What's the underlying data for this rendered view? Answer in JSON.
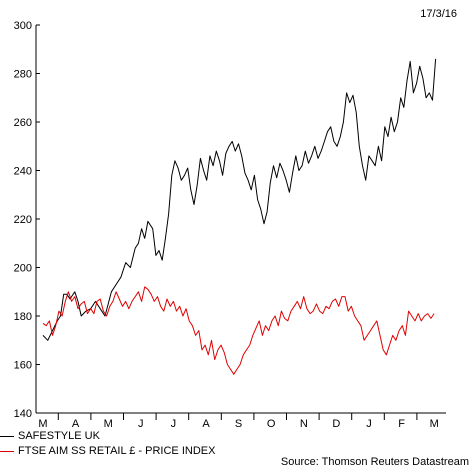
{
  "date_label": "17/3/16",
  "source": "Source: Thomson Reuters Datastream",
  "colors": {
    "safestyle": "#000000",
    "ftse": "#e00000"
  },
  "chart_data": {
    "type": "line",
    "title": "",
    "xlabel": "",
    "ylabel": "",
    "ylim": [
      140,
      300
    ],
    "y_ticks": [
      140,
      160,
      180,
      200,
      220,
      240,
      260,
      280,
      300
    ],
    "x_tick_labels": [
      "M",
      "A",
      "M",
      "J",
      "J",
      "A",
      "S",
      "O",
      "N",
      "D",
      "J",
      "F",
      "M"
    ],
    "x_range": [
      0,
      12.55
    ],
    "grid": false,
    "legend_position": "bottom-left",
    "series": [
      {
        "name": "SAFESTYLE UK",
        "color": "#000000",
        "points": [
          [
            0.0,
            172
          ],
          [
            0.15,
            170
          ],
          [
            0.3,
            174
          ],
          [
            0.45,
            178
          ],
          [
            0.55,
            180
          ],
          [
            0.65,
            189
          ],
          [
            0.75,
            189
          ],
          [
            0.85,
            187
          ],
          [
            1.0,
            190
          ],
          [
            1.1,
            186
          ],
          [
            1.2,
            180
          ],
          [
            1.35,
            182
          ],
          [
            1.5,
            183
          ],
          [
            1.65,
            186
          ],
          [
            1.8,
            183
          ],
          [
            1.95,
            180
          ],
          [
            2.05,
            185
          ],
          [
            2.15,
            190
          ],
          [
            2.3,
            193
          ],
          [
            2.45,
            196
          ],
          [
            2.6,
            202
          ],
          [
            2.75,
            200
          ],
          [
            2.9,
            208
          ],
          [
            3.0,
            210
          ],
          [
            3.1,
            216
          ],
          [
            3.2,
            212
          ],
          [
            3.3,
            219
          ],
          [
            3.4,
            217
          ],
          [
            3.45,
            216
          ],
          [
            3.55,
            205
          ],
          [
            3.65,
            207
          ],
          [
            3.75,
            203
          ],
          [
            3.85,
            212
          ],
          [
            3.95,
            222
          ],
          [
            4.05,
            238
          ],
          [
            4.15,
            244
          ],
          [
            4.25,
            241
          ],
          [
            4.35,
            236
          ],
          [
            4.45,
            238
          ],
          [
            4.55,
            241
          ],
          [
            4.65,
            232
          ],
          [
            4.75,
            226
          ],
          [
            4.85,
            234
          ],
          [
            4.95,
            245
          ],
          [
            5.05,
            240
          ],
          [
            5.15,
            236
          ],
          [
            5.25,
            246
          ],
          [
            5.35,
            242
          ],
          [
            5.45,
            248
          ],
          [
            5.55,
            244
          ],
          [
            5.65,
            238
          ],
          [
            5.75,
            247
          ],
          [
            5.85,
            250
          ],
          [
            5.95,
            252
          ],
          [
            6.05,
            248
          ],
          [
            6.15,
            251
          ],
          [
            6.25,
            246
          ],
          [
            6.35,
            239
          ],
          [
            6.45,
            236
          ],
          [
            6.55,
            232
          ],
          [
            6.65,
            238
          ],
          [
            6.75,
            228
          ],
          [
            6.85,
            224
          ],
          [
            6.95,
            218
          ],
          [
            7.05,
            223
          ],
          [
            7.15,
            235
          ],
          [
            7.25,
            242
          ],
          [
            7.35,
            237
          ],
          [
            7.45,
            243
          ],
          [
            7.55,
            240
          ],
          [
            7.65,
            236
          ],
          [
            7.75,
            231
          ],
          [
            7.85,
            239
          ],
          [
            7.95,
            246
          ],
          [
            8.05,
            240
          ],
          [
            8.15,
            242
          ],
          [
            8.25,
            248
          ],
          [
            8.35,
            243
          ],
          [
            8.45,
            246
          ],
          [
            8.55,
            250
          ],
          [
            8.65,
            245
          ],
          [
            8.75,
            248
          ],
          [
            8.85,
            252
          ],
          [
            8.95,
            256
          ],
          [
            9.05,
            258
          ],
          [
            9.15,
            252
          ],
          [
            9.25,
            250
          ],
          [
            9.35,
            254
          ],
          [
            9.45,
            260
          ],
          [
            9.55,
            272
          ],
          [
            9.65,
            268
          ],
          [
            9.75,
            271
          ],
          [
            9.85,
            264
          ],
          [
            9.95,
            250
          ],
          [
            10.05,
            242
          ],
          [
            10.15,
            236
          ],
          [
            10.25,
            246
          ],
          [
            10.35,
            244
          ],
          [
            10.45,
            242
          ],
          [
            10.55,
            250
          ],
          [
            10.65,
            244
          ],
          [
            10.75,
            258
          ],
          [
            10.85,
            254
          ],
          [
            10.95,
            262
          ],
          [
            11.05,
            256
          ],
          [
            11.15,
            260
          ],
          [
            11.25,
            270
          ],
          [
            11.35,
            266
          ],
          [
            11.45,
            277
          ],
          [
            11.55,
            285
          ],
          [
            11.65,
            272
          ],
          [
            11.75,
            276
          ],
          [
            11.85,
            283
          ],
          [
            11.95,
            278
          ],
          [
            12.05,
            270
          ],
          [
            12.15,
            272
          ],
          [
            12.25,
            269
          ],
          [
            12.35,
            286
          ]
        ]
      },
      {
        "name": "FTSE AIM SS RETAIL £ - PRICE INDEX",
        "color": "#e00000",
        "points": [
          [
            0.0,
            177
          ],
          [
            0.1,
            176
          ],
          [
            0.2,
            178
          ],
          [
            0.3,
            172
          ],
          [
            0.4,
            176
          ],
          [
            0.5,
            182
          ],
          [
            0.6,
            180
          ],
          [
            0.7,
            186
          ],
          [
            0.8,
            190
          ],
          [
            0.9,
            186
          ],
          [
            1.0,
            188
          ],
          [
            1.1,
            183
          ],
          [
            1.2,
            185
          ],
          [
            1.3,
            186
          ],
          [
            1.4,
            181
          ],
          [
            1.5,
            183
          ],
          [
            1.6,
            181
          ],
          [
            1.7,
            186
          ],
          [
            1.8,
            187
          ],
          [
            1.9,
            182
          ],
          [
            2.0,
            180
          ],
          [
            2.1,
            184
          ],
          [
            2.2,
            186
          ],
          [
            2.3,
            190
          ],
          [
            2.4,
            187
          ],
          [
            2.5,
            184
          ],
          [
            2.6,
            186
          ],
          [
            2.7,
            183
          ],
          [
            2.8,
            186
          ],
          [
            2.9,
            188
          ],
          [
            3.0,
            190
          ],
          [
            3.1,
            186
          ],
          [
            3.2,
            192
          ],
          [
            3.3,
            191
          ],
          [
            3.4,
            189
          ],
          [
            3.5,
            186
          ],
          [
            3.6,
            188
          ],
          [
            3.7,
            184
          ],
          [
            3.8,
            182
          ],
          [
            3.9,
            187
          ],
          [
            4.0,
            184
          ],
          [
            4.1,
            186
          ],
          [
            4.2,
            182
          ],
          [
            4.3,
            184
          ],
          [
            4.4,
            180
          ],
          [
            4.5,
            183
          ],
          [
            4.6,
            178
          ],
          [
            4.7,
            176
          ],
          [
            4.8,
            172
          ],
          [
            4.9,
            174
          ],
          [
            5.0,
            166
          ],
          [
            5.1,
            168
          ],
          [
            5.2,
            164
          ],
          [
            5.3,
            170
          ],
          [
            5.4,
            162
          ],
          [
            5.5,
            166
          ],
          [
            5.6,
            168
          ],
          [
            5.7,
            165
          ],
          [
            5.8,
            160
          ],
          [
            5.9,
            158
          ],
          [
            6.0,
            156
          ],
          [
            6.1,
            158
          ],
          [
            6.2,
            160
          ],
          [
            6.3,
            164
          ],
          [
            6.4,
            166
          ],
          [
            6.5,
            168
          ],
          [
            6.6,
            172
          ],
          [
            6.7,
            175
          ],
          [
            6.8,
            178
          ],
          [
            6.9,
            172
          ],
          [
            7.0,
            176
          ],
          [
            7.1,
            174
          ],
          [
            7.2,
            178
          ],
          [
            7.3,
            180
          ],
          [
            7.4,
            176
          ],
          [
            7.5,
            182
          ],
          [
            7.6,
            179
          ],
          [
            7.7,
            178
          ],
          [
            7.8,
            182
          ],
          [
            7.9,
            184
          ],
          [
            8.0,
            186
          ],
          [
            8.1,
            183
          ],
          [
            8.2,
            188
          ],
          [
            8.3,
            183
          ],
          [
            8.4,
            181
          ],
          [
            8.5,
            182
          ],
          [
            8.6,
            185
          ],
          [
            8.7,
            182
          ],
          [
            8.8,
            181
          ],
          [
            8.9,
            184
          ],
          [
            9.0,
            183
          ],
          [
            9.1,
            186
          ],
          [
            9.2,
            187
          ],
          [
            9.3,
            184
          ],
          [
            9.4,
            188
          ],
          [
            9.5,
            188
          ],
          [
            9.6,
            182
          ],
          [
            9.7,
            184
          ],
          [
            9.8,
            180
          ],
          [
            9.9,
            178
          ],
          [
            10.0,
            176
          ],
          [
            10.1,
            170
          ],
          [
            10.2,
            172
          ],
          [
            10.3,
            174
          ],
          [
            10.4,
            176
          ],
          [
            10.5,
            178
          ],
          [
            10.6,
            172
          ],
          [
            10.7,
            166
          ],
          [
            10.8,
            164
          ],
          [
            10.9,
            168
          ],
          [
            11.0,
            172
          ],
          [
            11.1,
            170
          ],
          [
            11.2,
            174
          ],
          [
            11.3,
            176
          ],
          [
            11.4,
            172
          ],
          [
            11.5,
            182
          ],
          [
            11.6,
            180
          ],
          [
            11.7,
            178
          ],
          [
            11.8,
            181
          ],
          [
            11.9,
            178
          ],
          [
            12.0,
            180
          ],
          [
            12.1,
            181
          ],
          [
            12.2,
            179
          ],
          [
            12.3,
            181
          ]
        ]
      }
    ]
  }
}
